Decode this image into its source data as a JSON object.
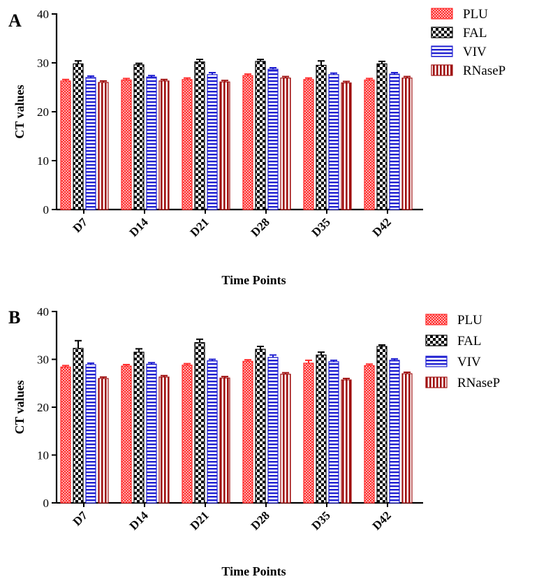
{
  "chart_data": [
    {
      "panel": "A",
      "type": "bar",
      "categories": [
        "D7",
        "D14",
        "D21",
        "D28",
        "D35",
        "D42"
      ],
      "xlabel": "Time Points",
      "ylabel": "CT values",
      "ylim": [
        0,
        40
      ],
      "yticks": [
        0,
        10,
        20,
        30,
        40
      ],
      "legend_position": "top-right",
      "series": [
        {
          "name": "PLU",
          "color": "#ff2a2a",
          "pattern": "checker-small",
          "values": [
            26.3,
            26.5,
            26.6,
            27.4,
            26.6,
            26.5
          ],
          "errors": [
            0.3,
            0.3,
            0.3,
            0.3,
            0.3,
            0.3
          ]
        },
        {
          "name": "FAL",
          "color": "#000000",
          "pattern": "checker-large",
          "values": [
            29.8,
            29.6,
            30.2,
            30.3,
            29.5,
            29.8
          ],
          "errors": [
            0.6,
            0.3,
            0.5,
            0.4,
            0.9,
            0.5
          ]
        },
        {
          "name": "VIV",
          "color": "#1f1fd1",
          "pattern": "horizontal-lines",
          "values": [
            27.0,
            27.1,
            27.6,
            28.7,
            27.6,
            27.7
          ],
          "errors": [
            0.3,
            0.3,
            0.4,
            0.3,
            0.3,
            0.3
          ]
        },
        {
          "name": "RNaseP",
          "color": "#a01010",
          "pattern": "vertical-lines",
          "values": [
            26.0,
            26.3,
            26.1,
            26.9,
            25.9,
            26.9
          ],
          "errors": [
            0.3,
            0.3,
            0.3,
            0.3,
            0.3,
            0.3
          ]
        }
      ]
    },
    {
      "panel": "B",
      "type": "bar",
      "categories": [
        "D7",
        "D14",
        "D21",
        "D28",
        "D35",
        "D42"
      ],
      "xlabel": "Time Points",
      "ylabel": "CT values",
      "ylim": [
        0,
        40
      ],
      "yticks": [
        0,
        10,
        20,
        30,
        40
      ],
      "legend_position": "top-right",
      "series": [
        {
          "name": "PLU",
          "color": "#ff2a2a",
          "pattern": "checker-small",
          "values": [
            28.4,
            28.6,
            28.8,
            29.6,
            29.2,
            28.7
          ],
          "errors": [
            0.3,
            0.3,
            0.3,
            0.3,
            0.6,
            0.3
          ]
        },
        {
          "name": "FAL",
          "color": "#000000",
          "pattern": "checker-large",
          "values": [
            32.3,
            31.5,
            33.5,
            32.1,
            30.9,
            32.7
          ],
          "errors": [
            1.6,
            0.7,
            0.7,
            0.6,
            0.6,
            0.3
          ]
        },
        {
          "name": "VIV",
          "color": "#1f1fd1",
          "pattern": "horizontal-lines",
          "values": [
            28.9,
            29.0,
            29.7,
            30.4,
            29.5,
            29.8
          ],
          "errors": [
            0.3,
            0.3,
            0.3,
            0.5,
            0.3,
            0.3
          ]
        },
        {
          "name": "RNaseP",
          "color": "#a01010",
          "pattern": "vertical-lines",
          "values": [
            26.0,
            26.3,
            26.1,
            26.9,
            25.7,
            27.0
          ],
          "errors": [
            0.3,
            0.3,
            0.3,
            0.3,
            0.3,
            0.3
          ]
        }
      ]
    }
  ]
}
